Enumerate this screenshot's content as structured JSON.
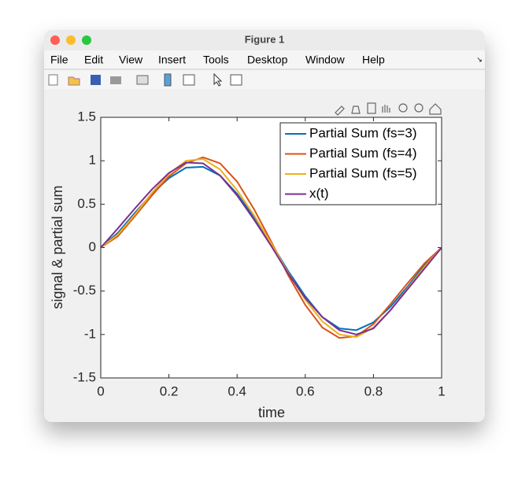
{
  "window": {
    "title": "Figure 1",
    "menu": [
      "File",
      "Edit",
      "View",
      "Insert",
      "Tools",
      "Desktop",
      "Window",
      "Help"
    ]
  },
  "chart_data": {
    "type": "line",
    "xlabel": "time",
    "ylabel": "signal & partial sum",
    "x": [
      0,
      0.05,
      0.1,
      0.15,
      0.2,
      0.25,
      0.3,
      0.35,
      0.4,
      0.45,
      0.5,
      0.55,
      0.6,
      0.65,
      0.7,
      0.75,
      0.8,
      0.85,
      0.9,
      0.95,
      1
    ],
    "series": [
      {
        "name": "Partial Sum (fs=3)",
        "color": "#0072BD",
        "values": [
          0,
          0.17,
          0.4,
          0.62,
          0.8,
          0.92,
          0.93,
          0.83,
          0.62,
          0.35,
          0.05,
          -0.27,
          -0.56,
          -0.8,
          -0.93,
          -0.95,
          -0.86,
          -0.68,
          -0.45,
          -0.2,
          0
        ]
      },
      {
        "name": "Partial Sum (fs=4)",
        "color": "#D95319",
        "values": [
          0,
          0.13,
          0.36,
          0.6,
          0.82,
          0.97,
          1.04,
          0.97,
          0.76,
          0.44,
          0.07,
          -0.32,
          -0.66,
          -0.92,
          -1.04,
          -1.02,
          -0.88,
          -0.65,
          -0.41,
          -0.18,
          0
        ]
      },
      {
        "name": "Partial Sum (fs=5)",
        "color": "#EDB120",
        "values": [
          0,
          0.15,
          0.38,
          0.63,
          0.85,
          1.0,
          1.02,
          0.9,
          0.66,
          0.37,
          0.05,
          -0.29,
          -0.6,
          -0.85,
          -1.0,
          -1.03,
          -0.92,
          -0.72,
          -0.47,
          -0.22,
          0
        ]
      },
      {
        "name": "x(t)",
        "color": "#7E2F8E",
        "values": [
          0,
          0.22,
          0.45,
          0.67,
          0.86,
          0.98,
          0.97,
          0.83,
          0.6,
          0.32,
          0.02,
          -0.3,
          -0.58,
          -0.8,
          -0.95,
          -1.0,
          -0.93,
          -0.72,
          -0.48,
          -0.24,
          0
        ]
      }
    ],
    "xlim": [
      0,
      1
    ],
    "xticks": [
      0,
      0.2,
      0.4,
      0.6,
      0.8,
      1
    ],
    "ylim": [
      -1.5,
      1.5
    ],
    "yticks": [
      -1.5,
      -1,
      -0.5,
      0,
      0.5,
      1,
      1.5
    ],
    "grid": false,
    "legend": "northeast"
  }
}
